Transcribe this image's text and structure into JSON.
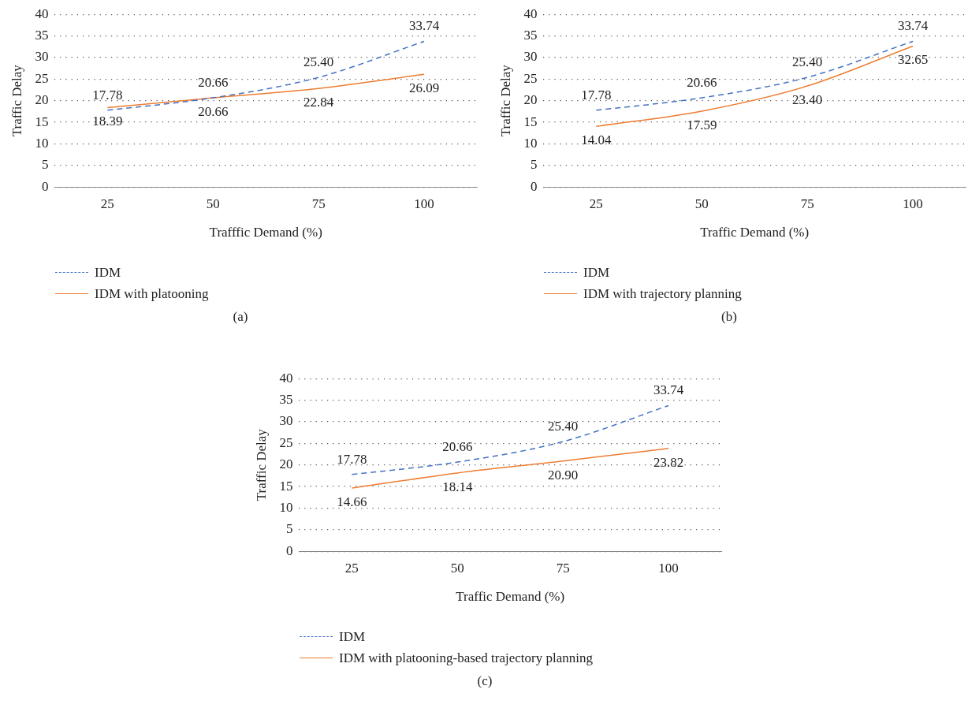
{
  "chart_data": [
    {
      "type": "line",
      "xlabel": "Trafffic Demand (%)",
      "ylabel": "Traffic Delay",
      "categories": [
        "25",
        "50",
        "75",
        "100"
      ],
      "series": [
        {
          "name": "IDM",
          "color": "#4472c4",
          "values": [
            17.78,
            20.66,
            25.4,
            33.74
          ],
          "value_labels": [
            "17.78",
            "20.66",
            "25.40",
            "33.74"
          ],
          "line_style": "dashed"
        },
        {
          "name": "IDM with platooning",
          "color": "#ed7d31",
          "values": [
            18.39,
            20.66,
            22.84,
            26.09
          ],
          "value_labels": [
            "18.39",
            "20.66",
            "22.84",
            "26.09"
          ],
          "line_style": "solid"
        }
      ],
      "ylim": [
        0,
        40
      ],
      "yticks": [
        0,
        5,
        10,
        15,
        20,
        25,
        30,
        35,
        40
      ],
      "grid": "y",
      "legend": "bottom left",
      "marker": "none",
      "annotations": [
        "(a)"
      ]
    },
    {
      "type": "line",
      "xlabel": "Traffic Demand (%)",
      "ylabel": "Traffic Delay",
      "categories": [
        "25",
        "50",
        "75",
        "100"
      ],
      "series": [
        {
          "name": "IDM",
          "color": "#4472c4",
          "values": [
            17.78,
            20.66,
            25.4,
            33.74
          ],
          "value_labels": [
            "17.78",
            "20.66",
            "25.40",
            "33.74"
          ],
          "line_style": "dashed"
        },
        {
          "name": "IDM with trajectory planning",
          "color": "#ed7d31",
          "values": [
            14.04,
            17.59,
            23.4,
            32.65
          ],
          "value_labels": [
            "14.04",
            "17.59",
            "23.40",
            "32.65"
          ],
          "line_style": "solid"
        }
      ],
      "ylim": [
        0,
        40
      ],
      "yticks": [
        0,
        5,
        10,
        15,
        20,
        25,
        30,
        35,
        40
      ],
      "grid": "y",
      "legend": "bottom left",
      "marker": "none",
      "annotations": [
        "(b)"
      ]
    },
    {
      "type": "line",
      "xlabel": "Traffic Demand (%)",
      "ylabel": "Traffic Delay",
      "categories": [
        "25",
        "50",
        "75",
        "100"
      ],
      "series": [
        {
          "name": "IDM",
          "color": "#4472c4",
          "values": [
            17.78,
            20.66,
            25.4,
            33.74
          ],
          "value_labels": [
            "17.78",
            "20.66",
            "25.40",
            "33.74"
          ],
          "line_style": "dashed"
        },
        {
          "name": "IDM with platooning-based trajectory planning",
          "color": "#ed7d31",
          "values": [
            14.66,
            18.14,
            20.9,
            23.82
          ],
          "value_labels": [
            "14.66",
            "18.14",
            "20.90",
            "23.82"
          ],
          "line_style": "solid"
        }
      ],
      "ylim": [
        0,
        40
      ],
      "yticks": [
        0,
        5,
        10,
        15,
        20,
        25,
        30,
        35,
        40
      ],
      "grid": "y",
      "legend": "bottom left",
      "marker": "none",
      "annotations": [
        "(c)"
      ]
    }
  ]
}
